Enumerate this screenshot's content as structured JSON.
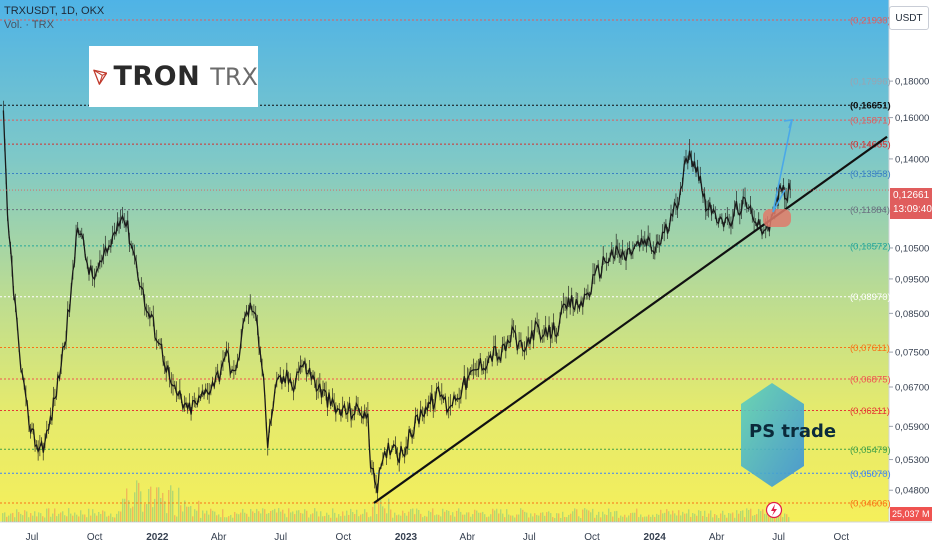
{
  "header": {
    "symbol_line": "TRXUSDT, 1D, OKX",
    "volume_label": "Vol. · TRX"
  },
  "logo": {
    "name": "TRON",
    "ticker": "TRX"
  },
  "watermark": "PS trade",
  "unit": "USDT",
  "last_price": {
    "value": "0,12661",
    "countdown": "13:09:40"
  },
  "volume_readout": "25,037 M",
  "colors": {
    "candles": "#1a1a1a",
    "trendline": "#111111",
    "projection_arrow": "#4aa8e8",
    "highlight_zone": "#e07a6a",
    "last_price_tag": "#e05d5d"
  },
  "chart_data": {
    "type": "line",
    "y_scale": "log",
    "ylim": [
      0.046,
      0.2193
    ],
    "y_ticks": [
      {
        "value": 0.18,
        "label": "0,18000"
      },
      {
        "value": 0.16,
        "label": "0,16000"
      },
      {
        "value": 0.14,
        "label": "0,14000"
      },
      {
        "value": 0.105,
        "label": "0,10500"
      },
      {
        "value": 0.095,
        "label": "0,09500"
      },
      {
        "value": 0.085,
        "label": "0,08500"
      },
      {
        "value": 0.075,
        "label": "0,07500"
      },
      {
        "value": 0.067,
        "label": "0,06700"
      },
      {
        "value": 0.059,
        "label": "0,05900"
      },
      {
        "value": 0.053,
        "label": "0,05300"
      },
      {
        "value": 0.048,
        "label": "0,04800"
      }
    ],
    "x_ticks": [
      {
        "date": "2021-07-01",
        "label": "Jul",
        "bold": false
      },
      {
        "date": "2021-10-01",
        "label": "Oct",
        "bold": false
      },
      {
        "date": "2022-01-01",
        "label": "2022",
        "bold": true
      },
      {
        "date": "2022-04-01",
        "label": "Abr",
        "bold": false
      },
      {
        "date": "2022-07-01",
        "label": "Jul",
        "bold": false
      },
      {
        "date": "2022-10-01",
        "label": "Oct",
        "bold": false
      },
      {
        "date": "2023-01-01",
        "label": "2023",
        "bold": true
      },
      {
        "date": "2023-04-01",
        "label": "Abr",
        "bold": false
      },
      {
        "date": "2023-07-01",
        "label": "Jul",
        "bold": false
      },
      {
        "date": "2023-10-01",
        "label": "Oct",
        "bold": false
      },
      {
        "date": "2024-01-01",
        "label": "2024",
        "bold": true
      },
      {
        "date": "2024-04-01",
        "label": "Abr",
        "bold": false
      },
      {
        "date": "2024-07-01",
        "label": "Jul",
        "bold": false
      },
      {
        "date": "2024-10-01",
        "label": "Oct",
        "bold": false
      }
    ],
    "levels": [
      {
        "value": 0.2193,
        "label": "(0,21930)",
        "color": "#e05d5d",
        "style": "dotted"
      },
      {
        "value": 0.17996,
        "label": "(0,17996)",
        "color": "#9ca3af",
        "style": "none"
      },
      {
        "value": 0.16651,
        "label": "(0,16651)",
        "color": "#111111",
        "style": "dotted"
      },
      {
        "value": 0.15871,
        "label": "(0,15871)",
        "color": "#e05d5d",
        "style": "dotted"
      },
      {
        "value": 0.14685,
        "label": "(0,14685)",
        "color": "#d32f2f",
        "style": "dotted"
      },
      {
        "value": 0.13358,
        "label": "(0,13358)",
        "color": "#3b82c4",
        "style": "dotted"
      },
      {
        "value": 0.11884,
        "label": "(0,11884)",
        "color": "#6b7280",
        "style": "dotted"
      },
      {
        "value": 0.10572,
        "label": "(0,10572)",
        "color": "#26a69a",
        "style": "dotted"
      },
      {
        "value": 0.0897,
        "label": "(0,08970)",
        "color": "#ffffff",
        "style": "dotted"
      },
      {
        "value": 0.07611,
        "label": "(0,07611)",
        "color": "#f97316",
        "style": "dotted"
      },
      {
        "value": 0.06875,
        "label": "(0,06875)",
        "color": "#ef5350",
        "style": "dotted"
      },
      {
        "value": 0.06211,
        "label": "(0,06211)",
        "color": "#e53935",
        "style": "dotted"
      },
      {
        "value": 0.05479,
        "label": "(0,05479)",
        "color": "#43a047",
        "style": "dotted"
      },
      {
        "value": 0.0507,
        "label": "(0,05070)",
        "color": "#3b82f6",
        "style": "dotted"
      },
      {
        "value": 0.04606,
        "label": "(0,04606)",
        "color": "#f97316",
        "style": "dotted"
      }
    ],
    "series": [
      {
        "x": [
          "2021-05-20",
          "2021-05-26",
          "2021-06-04",
          "2021-06-12",
          "2021-06-22",
          "2021-07-01",
          "2021-07-10",
          "2021-07-20",
          "2021-07-28",
          "2021-08-08",
          "2021-08-20",
          "2021-08-30",
          "2021-09-06",
          "2021-09-12",
          "2021-09-20",
          "2021-09-28",
          "2021-10-06",
          "2021-10-14",
          "2021-10-22",
          "2021-10-30",
          "2021-11-08",
          "2021-11-16",
          "2021-11-26",
          "2021-12-06",
          "2021-12-16",
          "2021-12-26",
          "2022-01-05",
          "2022-01-14",
          "2022-01-24",
          "2022-02-03",
          "2022-02-12",
          "2022-02-22",
          "2022-03-03",
          "2022-03-13",
          "2022-03-23",
          "2022-04-02",
          "2022-04-10",
          "2022-04-18",
          "2022-04-26",
          "2022-05-04",
          "2022-05-12",
          "2022-05-20",
          "2022-05-28",
          "2022-06-06",
          "2022-06-12",
          "2022-06-20",
          "2022-06-28",
          "2022-07-10",
          "2022-07-20",
          "2022-07-30",
          "2022-08-10",
          "2022-08-20",
          "2022-08-30",
          "2022-09-10",
          "2022-09-20",
          "2022-09-30",
          "2022-10-10",
          "2022-10-20",
          "2022-10-30",
          "2022-11-06",
          "2022-11-10",
          "2022-11-14",
          "2022-11-20",
          "2022-11-28",
          "2022-12-06",
          "2022-12-14",
          "2022-12-22",
          "2022-12-30",
          "2023-01-10",
          "2023-01-20",
          "2023-01-30",
          "2023-02-10",
          "2023-02-20",
          "2023-03-02",
          "2023-03-10",
          "2023-03-20",
          "2023-03-30",
          "2023-04-10",
          "2023-04-20",
          "2023-04-30",
          "2023-05-10",
          "2023-05-20",
          "2023-05-30",
          "2023-06-08",
          "2023-06-16",
          "2023-06-24",
          "2023-07-02",
          "2023-07-10",
          "2023-07-20",
          "2023-07-30",
          "2023-08-10",
          "2023-08-20",
          "2023-08-30",
          "2023-09-10",
          "2023-09-20",
          "2023-09-30",
          "2023-10-10",
          "2023-10-20",
          "2023-10-30",
          "2023-11-10",
          "2023-11-20",
          "2023-11-30",
          "2023-12-10",
          "2023-12-20",
          "2023-12-30",
          "2024-01-10",
          "2024-01-20",
          "2024-01-30",
          "2024-02-08",
          "2024-02-16",
          "2024-02-24",
          "2024-03-04",
          "2024-03-10",
          "2024-03-16",
          "2024-03-22",
          "2024-03-30",
          "2024-04-06",
          "2024-04-14",
          "2024-04-22",
          "2024-04-30",
          "2024-05-10",
          "2024-05-18",
          "2024-05-26",
          "2024-06-04",
          "2024-06-12",
          "2024-06-20",
          "2024-06-28",
          "2024-07-04",
          "2024-07-10",
          "2024-07-14",
          "2024-07-18"
        ],
        "y": [
          0.16,
          0.115,
          0.093,
          0.075,
          0.063,
          0.058,
          0.055,
          0.056,
          0.06,
          0.068,
          0.08,
          0.095,
          0.115,
          0.108,
          0.1,
          0.095,
          0.098,
          0.101,
          0.105,
          0.11,
          0.118,
          0.114,
          0.105,
          0.095,
          0.086,
          0.082,
          0.077,
          0.072,
          0.066,
          0.065,
          0.062,
          0.063,
          0.064,
          0.066,
          0.068,
          0.07,
          0.075,
          0.072,
          0.069,
          0.079,
          0.085,
          0.087,
          0.081,
          0.07,
          0.055,
          0.064,
          0.068,
          0.069,
          0.068,
          0.072,
          0.071,
          0.068,
          0.066,
          0.064,
          0.062,
          0.062,
          0.062,
          0.062,
          0.062,
          0.06,
          0.053,
          0.05,
          0.049,
          0.052,
          0.055,
          0.056,
          0.054,
          0.055,
          0.058,
          0.061,
          0.063,
          0.064,
          0.066,
          0.063,
          0.064,
          0.066,
          0.068,
          0.07,
          0.072,
          0.073,
          0.075,
          0.074,
          0.077,
          0.08,
          0.076,
          0.075,
          0.079,
          0.081,
          0.078,
          0.08,
          0.081,
          0.085,
          0.088,
          0.087,
          0.089,
          0.093,
          0.097,
          0.101,
          0.103,
          0.103,
          0.102,
          0.105,
          0.106,
          0.107,
          0.104,
          0.108,
          0.112,
          0.118,
          0.128,
          0.138,
          0.142,
          0.136,
          0.128,
          0.122,
          0.12,
          0.114,
          0.118,
          0.113,
          0.114,
          0.119,
          0.121,
          0.118,
          0.117,
          0.114,
          0.11,
          0.114,
          0.122,
          0.127,
          0.126,
          0.125,
          0.1266
        ]
      }
    ]
  }
}
